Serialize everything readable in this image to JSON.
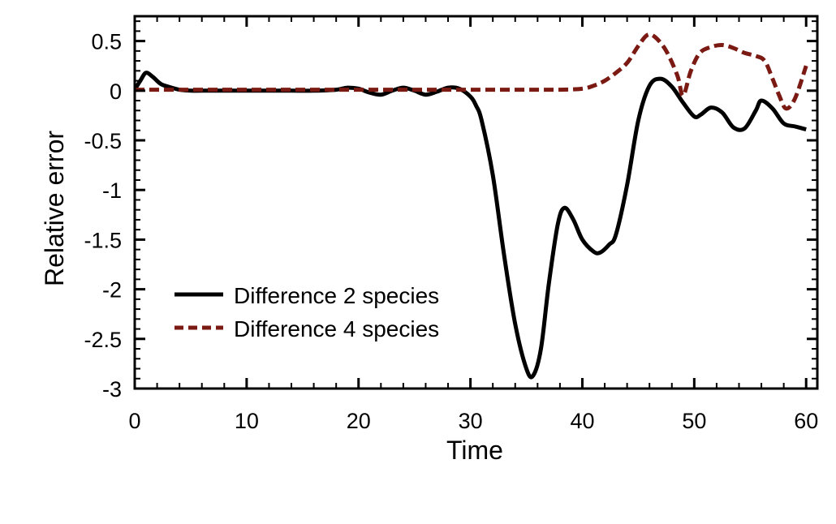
{
  "chart_data": {
    "type": "line",
    "title": "",
    "xlabel": "Time",
    "ylabel": "Relative error",
    "xlim": [
      0,
      61
    ],
    "ylim": [
      -3,
      0.75
    ],
    "xticks": [
      0,
      10,
      20,
      30,
      40,
      50,
      60
    ],
    "xtick_labels": [
      "0",
      "10",
      "20",
      "30",
      "40",
      "50",
      "60"
    ],
    "yticks": [
      0.5,
      0,
      -0.5,
      -1,
      -1.5,
      -2,
      -2.5,
      -3
    ],
    "ytick_labels": [
      "0.5",
      "0",
      "-0.5",
      "-1",
      "-1.5",
      "-2",
      "-2.5",
      "-3"
    ],
    "legend_position": "lower-left",
    "series": [
      {
        "name": "Difference 2 species",
        "color": "#000000",
        "style": "solid",
        "x": [
          0,
          0.5,
          1,
          1.6,
          2.3,
          3,
          4,
          5,
          6,
          8,
          10,
          12,
          14,
          16,
          18,
          19,
          20,
          21,
          22,
          23,
          24,
          25,
          26,
          27,
          28,
          29,
          30,
          30.5,
          31,
          32,
          33,
          34,
          35,
          35.6,
          36.3,
          37,
          37.8,
          38.4,
          39.2,
          40,
          41,
          41.6,
          42.4,
          43,
          44,
          45,
          46,
          47,
          48,
          49,
          50,
          50.6,
          51.5,
          52.5,
          53.5,
          54.5,
          55.5,
          56,
          57,
          58,
          59,
          60
        ],
        "values": [
          0.01,
          0.1,
          0.18,
          0.14,
          0.07,
          0.04,
          0.01,
          0.0,
          0.0,
          0.0,
          0.0,
          0.0,
          0.0,
          0.0,
          0.01,
          0.03,
          0.02,
          -0.02,
          -0.04,
          0.0,
          0.03,
          0.0,
          -0.04,
          -0.01,
          0.03,
          0.02,
          -0.06,
          -0.15,
          -0.3,
          -0.85,
          -1.65,
          -2.35,
          -2.8,
          -2.87,
          -2.6,
          -1.95,
          -1.35,
          -1.18,
          -1.3,
          -1.5,
          -1.62,
          -1.63,
          -1.55,
          -1.45,
          -0.95,
          -0.3,
          0.05,
          0.12,
          0.04,
          -0.12,
          -0.26,
          -0.24,
          -0.17,
          -0.22,
          -0.37,
          -0.38,
          -0.2,
          -0.1,
          -0.18,
          -0.33,
          -0.36,
          -0.39
        ]
      },
      {
        "name": "Difference 4 species",
        "color": "#7a1a12",
        "style": "dashed",
        "x": [
          0,
          5,
          10,
          15,
          20,
          25,
          30,
          35,
          38,
          40,
          41,
          42,
          43,
          44,
          45,
          45.8,
          46.5,
          47.5,
          48.5,
          49,
          49.7,
          50.5,
          51.5,
          52.5,
          53.5,
          54.5,
          55.5,
          56.3,
          57,
          57.6,
          58.2,
          59,
          60
        ],
        "values": [
          0.01,
          0.01,
          0.01,
          0.01,
          0.01,
          0.01,
          0.01,
          0.01,
          0.01,
          0.02,
          0.05,
          0.1,
          0.18,
          0.28,
          0.45,
          0.56,
          0.54,
          0.4,
          0.15,
          -0.05,
          0.2,
          0.38,
          0.44,
          0.46,
          0.43,
          0.38,
          0.35,
          0.3,
          0.12,
          -0.05,
          -0.18,
          -0.08,
          0.25
        ]
      }
    ]
  }
}
